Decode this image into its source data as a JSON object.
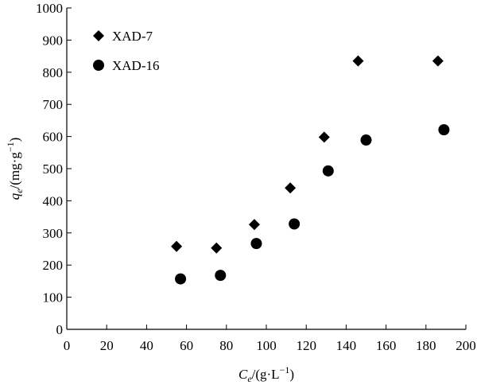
{
  "chart_data": {
    "type": "scatter",
    "title": "",
    "xlabel": {
      "var": "C",
      "sub": "e",
      "unit_prefix": "/(g·L",
      "unit_sup": "−1",
      "unit_suffix": ")"
    },
    "ylabel": {
      "var": "q",
      "sub": "e",
      "unit_prefix": "/(mg·g",
      "unit_sup": "−1",
      "unit_suffix": ")"
    },
    "xlim": [
      0,
      200
    ],
    "ylim": [
      0,
      1000
    ],
    "xticks": [
      0,
      20,
      40,
      60,
      80,
      100,
      120,
      140,
      160,
      180,
      200
    ],
    "yticks": [
      0,
      100,
      200,
      300,
      400,
      500,
      600,
      700,
      800,
      900,
      1000
    ],
    "grid": false,
    "legend_position": "top-left",
    "series": [
      {
        "name": "XAD-7",
        "marker": "diamond",
        "color": "#000000",
        "points": [
          {
            "x": 55,
            "y": 258
          },
          {
            "x": 75,
            "y": 253
          },
          {
            "x": 94,
            "y": 326
          },
          {
            "x": 112,
            "y": 440
          },
          {
            "x": 129,
            "y": 598
          },
          {
            "x": 146,
            "y": 835
          },
          {
            "x": 186,
            "y": 835
          }
        ]
      },
      {
        "name": "XAD-16",
        "marker": "circle",
        "color": "#000000",
        "points": [
          {
            "x": 57,
            "y": 157
          },
          {
            "x": 77,
            "y": 168
          },
          {
            "x": 95,
            "y": 267
          },
          {
            "x": 114,
            "y": 328
          },
          {
            "x": 131,
            "y": 493
          },
          {
            "x": 150,
            "y": 589
          },
          {
            "x": 189,
            "y": 621
          }
        ]
      }
    ]
  }
}
